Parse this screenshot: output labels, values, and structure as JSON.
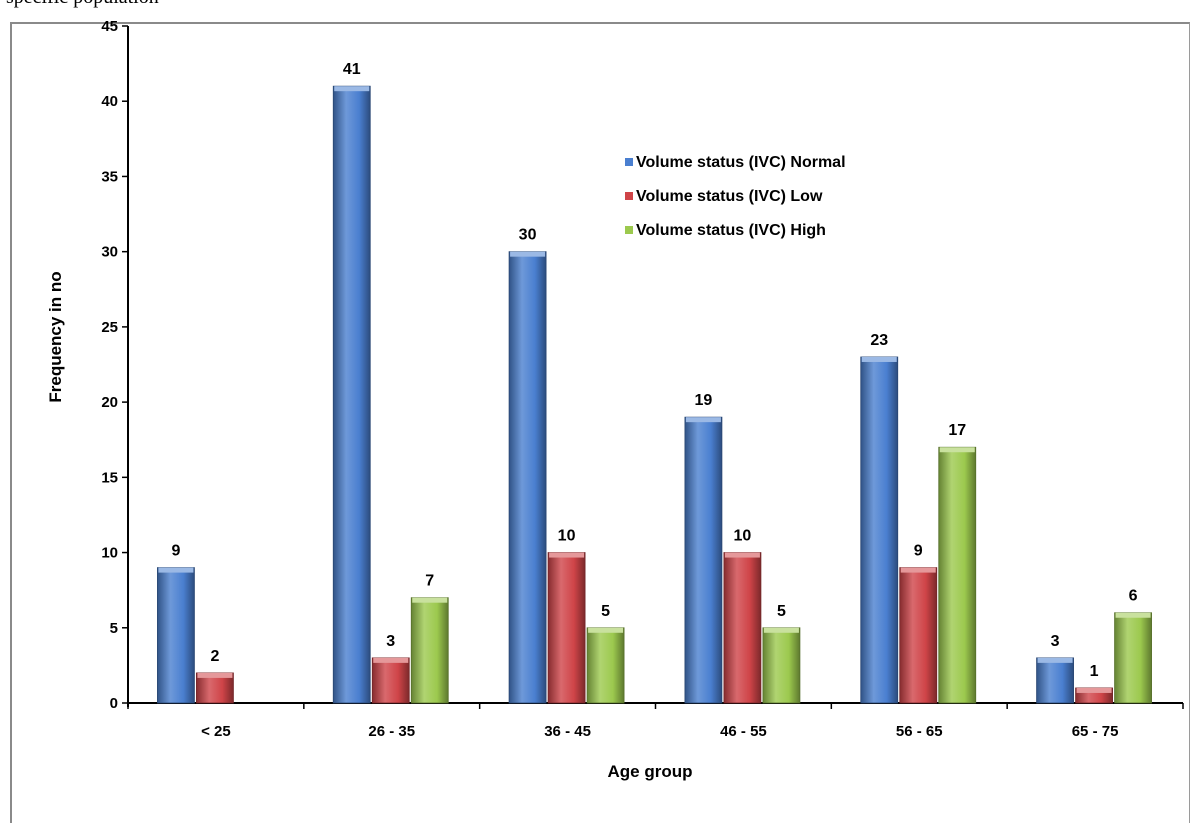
{
  "caption_fragment": "specific population",
  "chart_data": {
    "type": "bar",
    "title": "",
    "xlabel": "Age group",
    "ylabel": "Frequency in no",
    "ylim": [
      0,
      45
    ],
    "yticks": [
      "0",
      "5",
      "10",
      "15",
      "20",
      "25",
      "30",
      "35",
      "40",
      "45"
    ],
    "categories": [
      "< 25",
      "26 - 35",
      "36 - 45",
      "46 - 55",
      "56 - 65",
      "65 - 75"
    ],
    "series": [
      {
        "name": "Volume status (IVC) Normal",
        "color": "#4a7fd0",
        "values": [
          9,
          41,
          30,
          19,
          23,
          3
        ],
        "labels": [
          "9",
          "41",
          "30",
          "19",
          "23",
          "3"
        ]
      },
      {
        "name": "Volume status (IVC) Low",
        "color": "#cf4448",
        "values": [
          2,
          3,
          10,
          10,
          9,
          1
        ],
        "labels": [
          "2",
          "3",
          "10",
          "10",
          "9",
          "1"
        ]
      },
      {
        "name": "Volume status (IVC) High",
        "color": "#9cc94e",
        "values": [
          0,
          7,
          5,
          5,
          17,
          6
        ],
        "labels": [
          "",
          "7",
          "5",
          "5",
          "17",
          "6"
        ]
      }
    ],
    "grid": false,
    "legend_position": "upper-right"
  }
}
